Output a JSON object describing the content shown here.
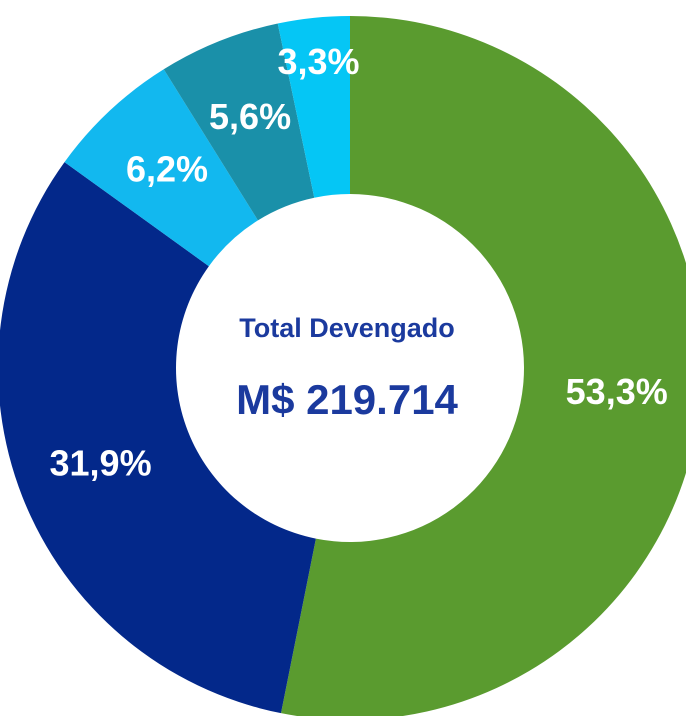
{
  "chart_data": {
    "type": "donut",
    "center_title": "Total Devengado",
    "center_value": "M$ 219.714",
    "values": [
      53.3,
      31.9,
      6.2,
      5.6,
      3.3
    ],
    "value_labels": [
      "53,3%",
      "31,9%",
      "6,2%",
      "5,6%",
      "3,3%"
    ],
    "colors": [
      "#5a9b2f",
      "#03288a",
      "#12b8ef",
      "#1a90a9",
      "#05c6f5"
    ]
  }
}
